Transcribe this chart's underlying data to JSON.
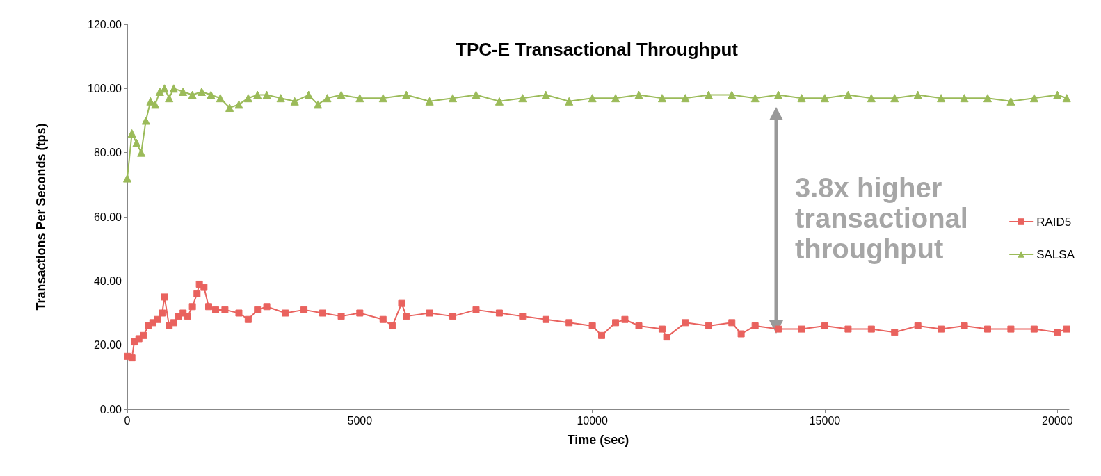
{
  "chart_data": {
    "type": "line",
    "title": "TPC-E Transactional Throughput",
    "xlabel": "Time (sec)",
    "ylabel": "Transactions Per Seconds (tps)",
    "annotations": [
      "3.8x higher transactional throughput"
    ],
    "xlim": [
      0,
      20250
    ],
    "xticks": [
      0,
      5000,
      10000,
      15000,
      20000
    ],
    "ylim": [
      0,
      120
    ],
    "yticks": [
      {
        "value": 0,
        "label": "0.00"
      },
      {
        "value": 20,
        "label": "20.00"
      },
      {
        "value": 40,
        "label": "40.00"
      },
      {
        "value": 60,
        "label": "60.00"
      },
      {
        "value": 80,
        "label": "80.00"
      },
      {
        "value": 100,
        "label": "100.00"
      },
      {
        "value": 120,
        "label": "120.00"
      }
    ],
    "grid": false,
    "legend": "right",
    "series": [
      {
        "name": "RAID5",
        "color": "#e9625e",
        "marker": "square",
        "x": [
          0,
          100,
          150,
          250,
          350,
          450,
          550,
          650,
          750,
          800,
          900,
          1000,
          1100,
          1200,
          1300,
          1400,
          1500,
          1550,
          1650,
          1750,
          1900,
          2100,
          2400,
          2600,
          2800,
          3000,
          3400,
          3800,
          4200,
          4600,
          5000,
          5500,
          5700,
          5900,
          6000,
          6500,
          7000,
          7500,
          8000,
          8500,
          9000,
          9500,
          10000,
          10200,
          10500,
          10700,
          11000,
          11500,
          11600,
          12000,
          12500,
          13000,
          13200,
          13500,
          14000,
          14500,
          15000,
          15500,
          16000,
          16500,
          17000,
          17500,
          18000,
          18500,
          19000,
          19500,
          20000,
          20200
        ],
        "values": [
          16.5,
          16,
          21,
          22,
          23,
          26,
          27,
          28,
          30,
          35,
          26,
          27,
          29,
          30,
          29,
          32,
          36,
          39,
          38,
          32,
          31,
          31,
          30,
          28,
          31,
          32,
          30,
          31,
          30,
          29,
          30,
          28,
          26,
          33,
          29,
          30,
          29,
          31,
          30,
          29,
          28,
          27,
          26,
          23,
          27,
          28,
          26,
          25,
          22.5,
          27,
          26,
          27,
          23.5,
          26,
          25,
          25,
          26,
          25,
          25,
          24,
          26,
          25,
          26,
          25,
          25,
          25,
          24,
          25
        ]
      },
      {
        "name": "SALSA",
        "color": "#9bbb59",
        "marker": "triangle",
        "x": [
          0,
          100,
          200,
          300,
          400,
          500,
          600,
          700,
          800,
          900,
          1000,
          1200,
          1400,
          1600,
          1800,
          2000,
          2200,
          2400,
          2600,
          2800,
          3000,
          3300,
          3600,
          3900,
          4100,
          4300,
          4600,
          5000,
          5500,
          6000,
          6500,
          7000,
          7500,
          8000,
          8500,
          9000,
          9500,
          10000,
          10500,
          11000,
          11500,
          12000,
          12500,
          13000,
          13500,
          14000,
          14500,
          15000,
          15500,
          16000,
          16500,
          17000,
          17500,
          18000,
          18500,
          19000,
          19500,
          20000,
          20200
        ],
        "values": [
          72,
          86,
          83,
          80,
          90,
          96,
          95,
          99,
          100,
          97,
          100,
          99,
          98,
          99,
          98,
          97,
          94,
          95,
          97,
          98,
          98,
          97,
          96,
          98,
          95,
          97,
          98,
          97,
          97,
          98,
          96,
          97,
          98,
          96,
          97,
          98,
          96,
          97,
          97,
          98,
          97,
          97,
          98,
          98,
          97,
          98,
          97,
          97,
          98,
          97,
          97,
          98,
          97,
          97,
          97,
          96,
          97,
          98,
          97
        ]
      }
    ]
  }
}
